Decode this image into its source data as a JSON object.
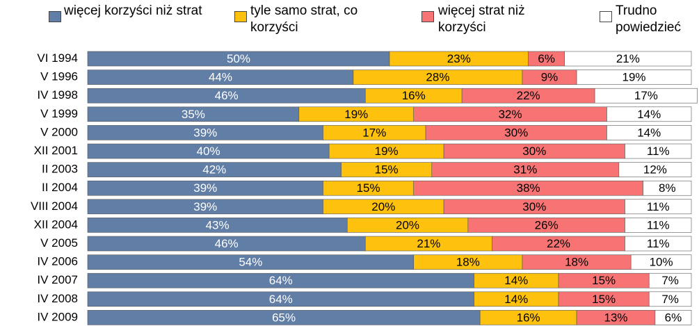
{
  "chart_data": {
    "type": "stacked-bar-horizontal",
    "categories": [
      "VI 1994",
      "V 1996",
      "IV 1998",
      "V 1999",
      "V 2000",
      "XII 2001",
      "II 2003",
      "II 2004",
      "VIII 2004",
      "XII 2004",
      "V 2005",
      "IV 2006",
      "IV 2007",
      "IV 2008",
      "IV 2009"
    ],
    "xlim": [
      0,
      100
    ],
    "legend": "top",
    "series": [
      {
        "name": "więcej korzyści niż strat",
        "color": "#617ea6",
        "values": [
          50,
          44,
          46,
          35,
          39,
          40,
          42,
          39,
          39,
          43,
          46,
          54,
          64,
          64,
          65
        ],
        "value_labels": [
          "50%",
          "44%",
          "46%",
          "35%",
          "39%",
          "40%",
          "42%",
          "39%",
          "39%",
          "43%",
          "46%",
          "54%",
          "64%",
          "64%",
          "65%"
        ]
      },
      {
        "name": "tyle samo strat, co korzyści",
        "color": "#fdc10e",
        "values": [
          23,
          28,
          16,
          19,
          17,
          19,
          15,
          15,
          20,
          20,
          21,
          18,
          14,
          14,
          16
        ],
        "value_labels": [
          "23%",
          "28%",
          "16%",
          "19%",
          "17%",
          "19%",
          "15%",
          "15%",
          "20%",
          "20%",
          "21%",
          "18%",
          "14%",
          "14%",
          "16%"
        ]
      },
      {
        "name": "więcej strat niż korzyści",
        "color": "#f87474",
        "values": [
          6,
          9,
          22,
          32,
          30,
          30,
          31,
          38,
          30,
          26,
          22,
          18,
          15,
          15,
          13
        ],
        "value_labels": [
          "6%",
          "9%",
          "22%",
          "32%",
          "30%",
          "30%",
          "31%",
          "38%",
          "30%",
          "26%",
          "22%",
          "18%",
          "15%",
          "15%",
          "13%"
        ]
      },
      {
        "name": "Trudno powiedzieć",
        "color": "#ffffff",
        "values": [
          21,
          19,
          17,
          14,
          14,
          11,
          12,
          8,
          11,
          11,
          11,
          10,
          7,
          7,
          6
        ],
        "value_labels": [
          "21%",
          "19%",
          "17%",
          "14%",
          "14%",
          "11%",
          "12%",
          "8%",
          "11%",
          "11%",
          "11%",
          "10%",
          "7%",
          "7%",
          "6%"
        ]
      }
    ]
  }
}
